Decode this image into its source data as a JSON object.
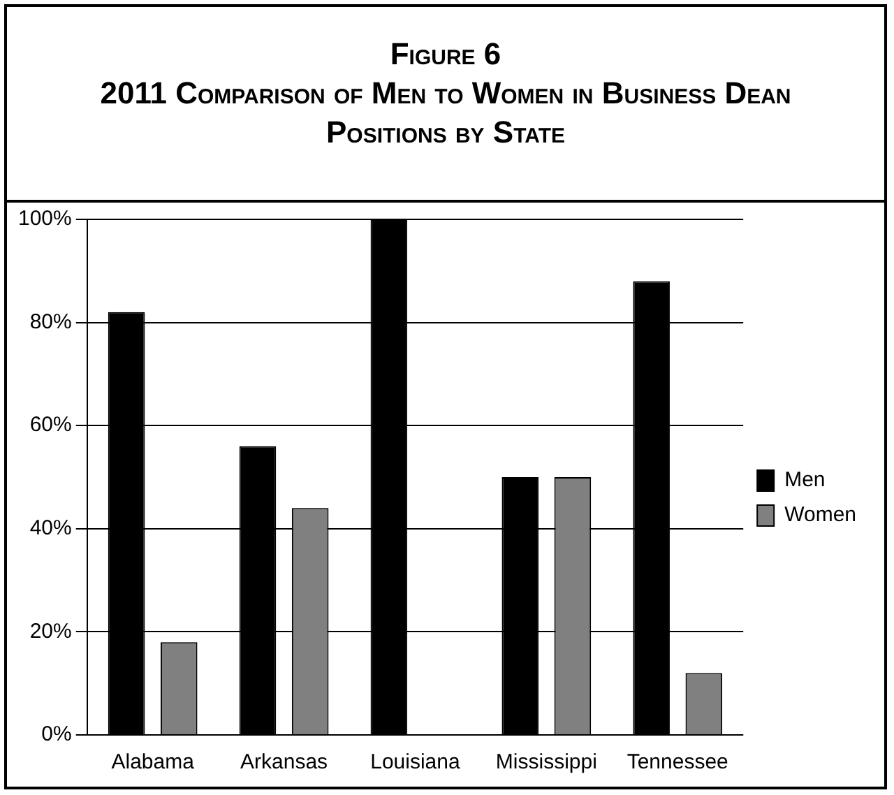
{
  "chart_data": {
    "type": "bar",
    "title": "Figure 6",
    "subtitle": "2011 Comparison of Men to Women in Business Dean Positions by State",
    "categories": [
      "Alabama",
      "Arkansas",
      "Louisiana",
      "Mississippi",
      "Tennessee"
    ],
    "series": [
      {
        "name": "Men",
        "color": "#000000",
        "values": [
          82,
          56,
          100,
          50,
          88
        ]
      },
      {
        "name": "Women",
        "color": "#808080",
        "values": [
          18,
          44,
          0,
          50,
          12
        ]
      }
    ],
    "ylim": [
      0,
      100
    ],
    "yticks": [
      {
        "value": 0,
        "label": "0%"
      },
      {
        "value": 20,
        "label": "20%"
      },
      {
        "value": 40,
        "label": "40%"
      },
      {
        "value": 60,
        "label": "60%"
      },
      {
        "value": 80,
        "label": "80%"
      },
      {
        "value": 100,
        "label": "100%"
      }
    ],
    "grid": "y",
    "legend": "right"
  }
}
